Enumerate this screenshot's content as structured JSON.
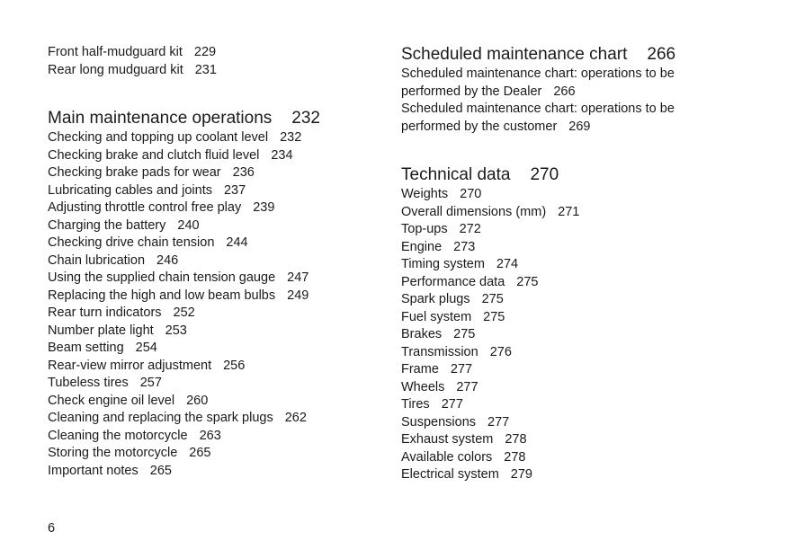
{
  "left": {
    "pre": [
      {
        "t": "Front half-mudguard kit",
        "p": "229"
      },
      {
        "t": "Rear long mudguard kit",
        "p": "231"
      }
    ],
    "sections": [
      {
        "title": "Main maintenance operations",
        "page": "232",
        "items": [
          {
            "t": "Checking and topping up coolant level",
            "p": "232"
          },
          {
            "t": "Checking brake and clutch fluid level",
            "p": "234"
          },
          {
            "t": "Checking brake pads for wear",
            "p": "236"
          },
          {
            "t": "Lubricating cables and joints",
            "p": "237"
          },
          {
            "t": "Adjusting throttle control free play",
            "p": "239"
          },
          {
            "t": "Charging the battery",
            "p": "240"
          },
          {
            "t": "Checking drive chain tension",
            "p": "244"
          },
          {
            "t": "Chain lubrication",
            "p": "246"
          },
          {
            "t": "Using the supplied chain tension gauge",
            "p": "247"
          },
          {
            "t": "Replacing the high and low beam bulbs",
            "p": "249"
          },
          {
            "t": "Rear turn indicators",
            "p": "252"
          },
          {
            "t": "Number plate light",
            "p": "253"
          },
          {
            "t": "Beam setting",
            "p": "254"
          },
          {
            "t": "Rear-view mirror adjustment",
            "p": "256"
          },
          {
            "t": "Tubeless tires",
            "p": "257"
          },
          {
            "t": "Check engine oil level",
            "p": "260"
          },
          {
            "t": "Cleaning and replacing the spark plugs",
            "p": "262"
          },
          {
            "t": "Cleaning the motorcycle",
            "p": "263"
          },
          {
            "t": "Storing the motorcycle",
            "p": "265"
          },
          {
            "t": "Important notes",
            "p": "265"
          }
        ]
      }
    ]
  },
  "right": {
    "sections": [
      {
        "title": "Scheduled maintenance chart",
        "page": "266",
        "items": [
          {
            "t": "Scheduled maintenance chart: operations to be",
            "p": ""
          },
          {
            "t": "performed by the Dealer",
            "p": "266"
          },
          {
            "t": "Scheduled maintenance chart: operations to be",
            "p": ""
          },
          {
            "t": "performed by the customer",
            "p": "269"
          }
        ]
      },
      {
        "title": "Technical data",
        "page": "270",
        "items": [
          {
            "t": "Weights",
            "p": "270"
          },
          {
            "t": "Overall dimensions (mm)",
            "p": "271"
          },
          {
            "t": "Top-ups",
            "p": "272"
          },
          {
            "t": "Engine",
            "p": "273"
          },
          {
            "t": "Timing system",
            "p": "274"
          },
          {
            "t": "Performance data",
            "p": "275"
          },
          {
            "t": "Spark plugs",
            "p": "275"
          },
          {
            "t": "Fuel system",
            "p": "275"
          },
          {
            "t": "Brakes",
            "p": "275"
          },
          {
            "t": "Transmission",
            "p": "276"
          },
          {
            "t": "Frame",
            "p": "277"
          },
          {
            "t": "Wheels",
            "p": "277"
          },
          {
            "t": "Tires",
            "p": "277"
          },
          {
            "t": "Suspensions",
            "p": "277"
          },
          {
            "t": "Exhaust system",
            "p": "278"
          },
          {
            "t": "Available colors",
            "p": "278"
          },
          {
            "t": "Electrical system",
            "p": "279"
          }
        ]
      }
    ]
  },
  "page_number": "6"
}
